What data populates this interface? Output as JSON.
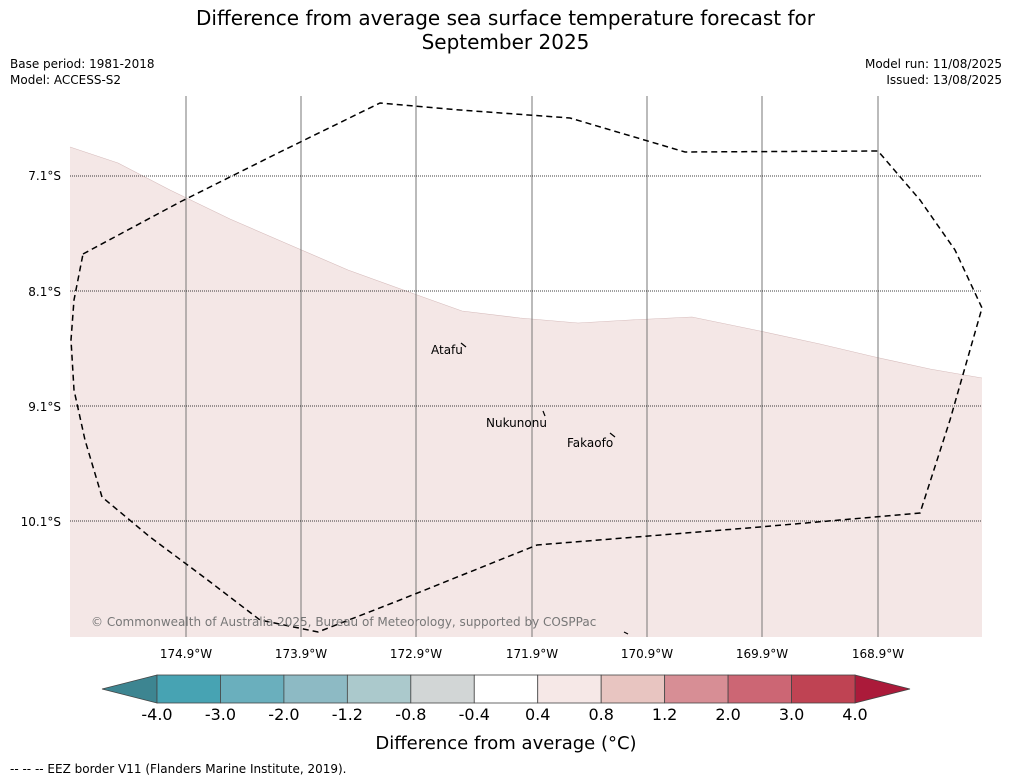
{
  "title_line1": "Difference from average sea surface temperature forecast for",
  "title_line2": "September 2025",
  "base_period": "Base period: 1981-2018",
  "model": "Model: ACCESS-S2",
  "model_run": "Model run: 11/08/2025",
  "issued": "Issued: 13/08/2025",
  "lat_labels": [
    "7.1°S",
    "8.1°S",
    "9.1°S",
    "10.1°S"
  ],
  "lon_labels": [
    "174.9°W",
    "173.9°W",
    "172.9°W",
    "171.9°W",
    "170.9°W",
    "169.9°W",
    "168.9°W"
  ],
  "places": [
    "Atafu",
    "Nukunonu",
    "Fakaofo"
  ],
  "copyright": "© Commonwealth of Australia 2025, Bureau of Meteorology, supported by COSPPac",
  "colorbar": {
    "ticks": [
      "-4.0",
      "-3.0",
      "-2.0",
      "-1.2",
      "-0.8",
      "-0.4",
      "0.4",
      "0.8",
      "1.2",
      "2.0",
      "3.0",
      "4.0"
    ],
    "colors": [
      "#47a3b3",
      "#6aafbd",
      "#8dbac4",
      "#abc9cc",
      "#d2d6d6",
      "#ffffff",
      "#f6e8e7",
      "#e8c5c1",
      "#d78e95",
      "#cc6674",
      "#bf4353"
    ],
    "under_color": "#3d8591",
    "over_color": "#ab1a3a",
    "label": "Difference from average (°C)"
  },
  "map": {
    "forecast_fill": "#f4e7e6",
    "north_fill": "#ffffff"
  },
  "footnote": "--  --  -- EEZ border V11 (Flanders Marine Institute, 2019)."
}
